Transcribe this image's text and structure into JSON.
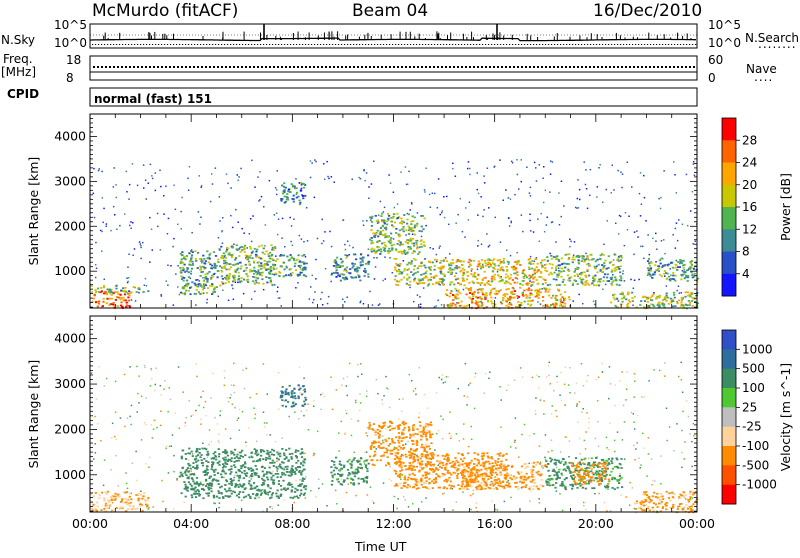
{
  "header": {
    "title": "McMurdo (fitACF)",
    "beam": "Beam 04",
    "date": "16/Dec/2010"
  },
  "sky_panel": {
    "left_label": "N.Sky",
    "right_label": "N.Search",
    "right_dots": "........",
    "ticks_top": "10^5",
    "ticks_bottom": "10^0",
    "right_ticks_top": "10^5",
    "right_ticks_bottom": "10^0"
  },
  "freq_panel": {
    "left_label_1": "Freq.",
    "left_label_2": "[MHz]",
    "right_label": "Nave",
    "right_dots": "....",
    "left_ticks": [
      "18",
      "8"
    ],
    "right_ticks": [
      "60",
      "0"
    ]
  },
  "cpid": {
    "label": "CPID",
    "value": "normal (fast) 151"
  },
  "x_axis": {
    "label": "Time UT",
    "ticks": [
      "00:00",
      "04:00",
      "08:00",
      "12:00",
      "16:00",
      "20:00",
      "00:00"
    ],
    "range_hours": [
      0,
      24
    ]
  },
  "chart_data": [
    {
      "type": "heatmap",
      "quantity": "Power",
      "ylabel": "Slant Range [km]",
      "ylim": [
        180,
        4500
      ],
      "yticks": [
        1000,
        2000,
        3000,
        4000
      ],
      "colorbar_label": "Power [dB]",
      "colorbar_ticks": [
        "4",
        "8",
        "12",
        "16",
        "20",
        "24",
        "28"
      ],
      "colorbar_colors": [
        "#1414ff",
        "#2850c8",
        "#3c8c96",
        "#50b450",
        "#c8c800",
        "#ffa500",
        "#ff6400",
        "#ff0000"
      ],
      "clusters": [
        {
          "t": [
            0.0,
            1.6
          ],
          "r": [
            190,
            600
          ],
          "v": 26
        },
        {
          "t": [
            0.0,
            2.3
          ],
          "r": [
            550,
            700
          ],
          "v": 14
        },
        {
          "t": [
            3.5,
            5.0
          ],
          "r": [
            500,
            1500
          ],
          "v": 12
        },
        {
          "t": [
            5.0,
            7.3
          ],
          "r": [
            700,
            1600
          ],
          "v": 14
        },
        {
          "t": [
            7.0,
            8.5
          ],
          "r": [
            900,
            1400
          ],
          "v": 12
        },
        {
          "t": [
            7.5,
            8.5
          ],
          "r": [
            2500,
            3000
          ],
          "v": 10
        },
        {
          "t": [
            9.5,
            11.0
          ],
          "r": [
            800,
            1400
          ],
          "v": 10
        },
        {
          "t": [
            11.0,
            13.2
          ],
          "r": [
            1400,
            2300
          ],
          "v": 14
        },
        {
          "t": [
            12.0,
            14.5
          ],
          "r": [
            700,
            1300
          ],
          "v": 16
        },
        {
          "t": [
            14.5,
            18.0
          ],
          "r": [
            700,
            1300
          ],
          "v": 20
        },
        {
          "t": [
            14.0,
            19.0
          ],
          "r": [
            190,
            650
          ],
          "v": 22
        },
        {
          "t": [
            18.0,
            21.0
          ],
          "r": [
            700,
            1400
          ],
          "v": 14
        },
        {
          "t": [
            20.5,
            24.0
          ],
          "r": [
            190,
            550
          ],
          "v": 16
        },
        {
          "t": [
            22.0,
            24.0
          ],
          "r": [
            800,
            1300
          ],
          "v": 12
        }
      ]
    },
    {
      "type": "heatmap",
      "quantity": "Velocity",
      "ylabel": "Slant Range [km]",
      "ylim": [
        180,
        4500
      ],
      "yticks": [
        1000,
        2000,
        3000,
        4000
      ],
      "colorbar_label": "Velocity [m s^-1]",
      "colorbar_ticks": [
        "1000",
        "500",
        "100",
        "25",
        "-25",
        "-100",
        "-500",
        "-1000"
      ],
      "colorbar_colors": [
        "#3050c8",
        "#2e6e9e",
        "#3c8c64",
        "#50c832",
        "#bebebe",
        "#ffd29b",
        "#ff8c00",
        "#ff5000",
        "#ff0000"
      ],
      "clusters": [
        {
          "t": [
            0.0,
            2.3
          ],
          "r": [
            190,
            650
          ],
          "v": -100
        },
        {
          "t": [
            3.5,
            8.5
          ],
          "r": [
            500,
            1600
          ],
          "v": 300
        },
        {
          "t": [
            7.5,
            8.5
          ],
          "r": [
            2500,
            3000
          ],
          "v": 600
        },
        {
          "t": [
            9.5,
            11.0
          ],
          "r": [
            800,
            1400
          ],
          "v": 200
        },
        {
          "t": [
            11.0,
            13.5
          ],
          "r": [
            1200,
            2200
          ],
          "v": -200
        },
        {
          "t": [
            12.0,
            16.5
          ],
          "r": [
            700,
            1500
          ],
          "v": -200
        },
        {
          "t": [
            14.5,
            18.0
          ],
          "r": [
            700,
            1300
          ],
          "v": -150
        },
        {
          "t": [
            18.0,
            21.0
          ],
          "r": [
            700,
            1400
          ],
          "v": 150
        },
        {
          "t": [
            19.0,
            20.5
          ],
          "r": [
            800,
            1300
          ],
          "v": -200
        },
        {
          "t": [
            21.5,
            24.0
          ],
          "r": [
            190,
            650
          ],
          "v": -150
        }
      ]
    }
  ]
}
